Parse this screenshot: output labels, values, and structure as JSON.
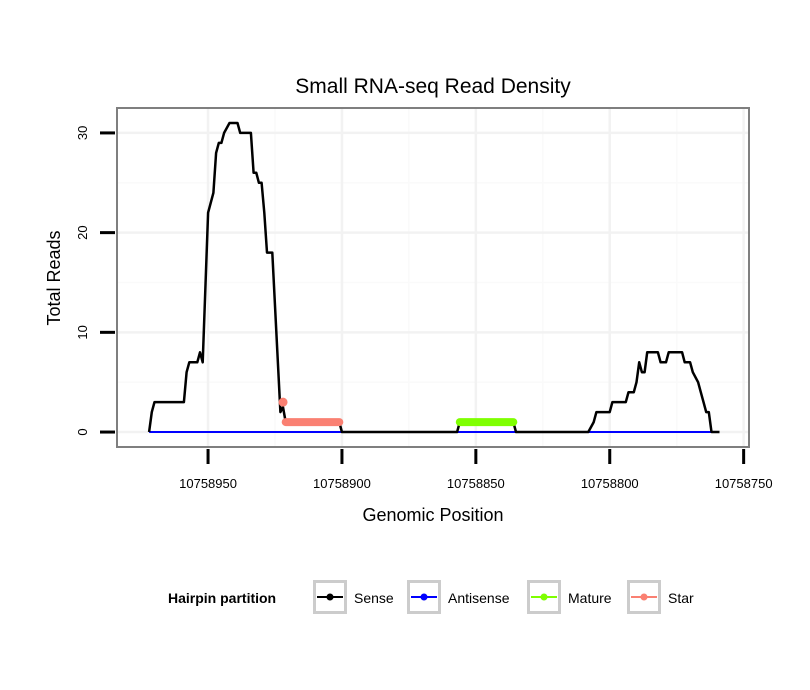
{
  "chart_data": {
    "type": "line",
    "title": "Small RNA-seq Read Density",
    "xlabel": "Genomic Position",
    "ylabel": "Total Reads",
    "xlim": [
      10758984,
      10758748
    ],
    "x_reversed": true,
    "ylim": [
      -1.5,
      32.5
    ],
    "xticks": [
      10758950,
      10758900,
      10758850,
      10758800,
      10758750
    ],
    "yticks": [
      0,
      10,
      20,
      30
    ],
    "grid": true,
    "legend": {
      "title": "Hairpin partition",
      "placement": "bottom",
      "entries": [
        "Sense",
        "Antisense",
        "Mature",
        "Star"
      ]
    },
    "series": [
      {
        "name": "Antisense",
        "color": "#0000ff",
        "points": [
          [
            10758972,
            0
          ],
          [
            10758762,
            0
          ]
        ]
      },
      {
        "name": "Sense",
        "color": "#000000",
        "points": [
          [
            10758972,
            0
          ],
          [
            10758971,
            2
          ],
          [
            10758970,
            3
          ],
          [
            10758959,
            3
          ],
          [
            10758958,
            6
          ],
          [
            10758957,
            7
          ],
          [
            10758954,
            7
          ],
          [
            10758953,
            8
          ],
          [
            10758952,
            7
          ],
          [
            10758950,
            22
          ],
          [
            10758948,
            24
          ],
          [
            10758947,
            28
          ],
          [
            10758946,
            29
          ],
          [
            10758945,
            29
          ],
          [
            10758944,
            30
          ],
          [
            10758942,
            31
          ],
          [
            10758939,
            31
          ],
          [
            10758938,
            30
          ],
          [
            10758934,
            30
          ],
          [
            10758933,
            26
          ],
          [
            10758932,
            26
          ],
          [
            10758931,
            25
          ],
          [
            10758930,
            25
          ],
          [
            10758929,
            22
          ],
          [
            10758928,
            18
          ],
          [
            10758926,
            18
          ],
          [
            10758923,
            2
          ],
          [
            10758922,
            2.5
          ],
          [
            10758921,
            1
          ],
          [
            10758901,
            1
          ],
          [
            10758900,
            0
          ],
          [
            10758857,
            0
          ],
          [
            10758856,
            1
          ],
          [
            10758836,
            1
          ],
          [
            10758835,
            0
          ],
          [
            10758808,
            0
          ],
          [
            10758806,
            1
          ],
          [
            10758805,
            2
          ],
          [
            10758800,
            2
          ],
          [
            10758799,
            3
          ],
          [
            10758794,
            3
          ],
          [
            10758793,
            4
          ],
          [
            10758791,
            4
          ],
          [
            10758790,
            5
          ],
          [
            10758789,
            7
          ],
          [
            10758788,
            6
          ],
          [
            10758787,
            6
          ],
          [
            10758786,
            8
          ],
          [
            10758782,
            8
          ],
          [
            10758781,
            7
          ],
          [
            10758779,
            7
          ],
          [
            10758778,
            8
          ],
          [
            10758773,
            8
          ],
          [
            10758772,
            7
          ],
          [
            10758770,
            7
          ],
          [
            10758769,
            6
          ],
          [
            10758767,
            5
          ],
          [
            10758766,
            4
          ],
          [
            10758765,
            3
          ],
          [
            10758764,
            2
          ],
          [
            10758763,
            2
          ],
          [
            10758762,
            0
          ],
          [
            10758759,
            0
          ]
        ]
      },
      {
        "name": "Mature",
        "color": "#7fff00",
        "points": [
          [
            10758856,
            1
          ],
          [
            10758836,
            1
          ]
        ]
      },
      {
        "name": "Star",
        "color": "#fa8072",
        "points": [
          [
            10758921,
            1
          ],
          [
            10758901,
            1
          ]
        ],
        "extra_points": [
          [
            10758922,
            3
          ]
        ]
      }
    ]
  }
}
